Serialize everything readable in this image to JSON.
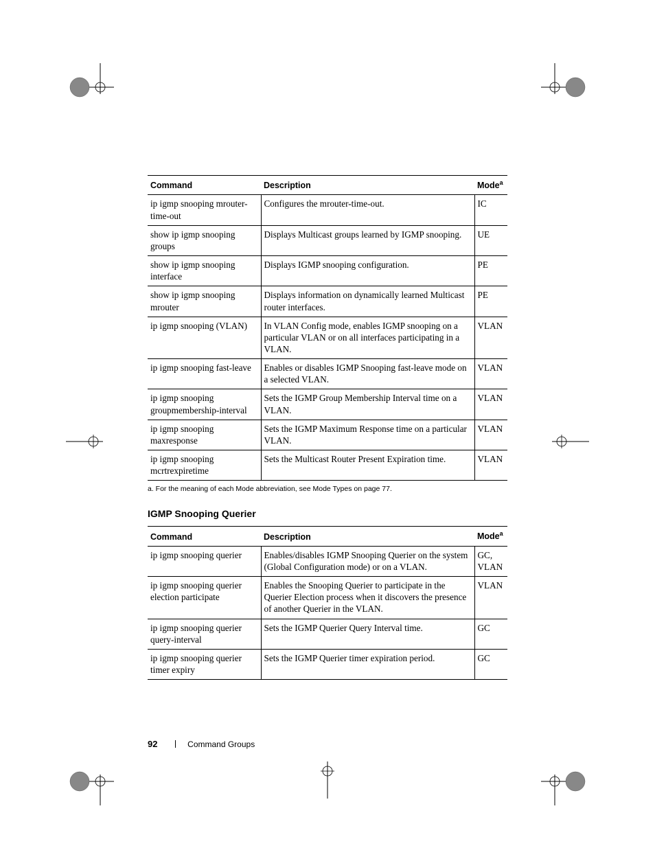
{
  "table1": {
    "headers": {
      "cmd": "Command",
      "desc": "Description",
      "mode": "Mode",
      "mode_sup": "a"
    },
    "rows": [
      {
        "cmd": "ip igmp snooping mrouter-time-out",
        "desc": "Configures the mrouter-time-out.",
        "mode": "IC"
      },
      {
        "cmd": "show ip igmp snooping groups",
        "desc": "Displays Multicast groups learned by IGMP snooping.",
        "mode": "UE"
      },
      {
        "cmd": "show ip igmp snooping interface",
        "desc": "Displays IGMP snooping configuration.",
        "mode": "PE"
      },
      {
        "cmd": "show ip igmp snooping mrouter",
        "desc": "Displays information on dynamically learned Multicast router interfaces.",
        "mode": "PE"
      },
      {
        "cmd": "ip igmp snooping (VLAN)",
        "desc": "In VLAN Config mode, enables IGMP snooping on a particular VLAN or on all interfaces participating in a VLAN.",
        "mode": "VLAN"
      },
      {
        "cmd": "ip igmp snooping fast-leave",
        "desc": "Enables or disables IGMP Snooping fast-leave mode on a selected VLAN.",
        "mode": "VLAN"
      },
      {
        "cmd": "ip igmp snooping groupmembership-interval",
        "desc": "Sets the IGMP Group Membership Interval time on a VLAN.",
        "mode": "VLAN"
      },
      {
        "cmd": "ip igmp snooping maxresponse",
        "desc": "Sets the IGMP Maximum Response time on a particular VLAN.",
        "mode": "VLAN"
      },
      {
        "cmd": "ip igmp snooping mcrtrexpiretime",
        "desc": "Sets the Multicast Router Present Expiration time.",
        "mode": "VLAN"
      }
    ]
  },
  "footnote1": "a.   For the meaning of each Mode abbreviation, see Mode Types on page 77.",
  "section2_heading": "IGMP Snooping Querier",
  "table2": {
    "headers": {
      "cmd": "Command",
      "desc": "Description",
      "mode": "Mode",
      "mode_sup": "a"
    },
    "rows": [
      {
        "cmd": "ip igmp snooping querier",
        "desc": "Enables/disables IGMP Snooping Querier on the system (Global Configuration mode) or on a VLAN.",
        "mode": "GC, VLAN"
      },
      {
        "cmd": "ip igmp snooping querier election participate",
        "desc": "Enables the Snooping Querier to participate in the Querier Election process when it discovers the presence of another Querier in the VLAN.",
        "mode": "VLAN"
      },
      {
        "cmd": "ip igmp snooping querier query-interval",
        "desc": "Sets the IGMP Querier Query Interval time.",
        "mode": "GC"
      },
      {
        "cmd": "ip igmp snooping querier timer expiry",
        "desc": "Sets the IGMP Querier timer expiration period.",
        "mode": "GC"
      }
    ]
  },
  "footer": {
    "page": "92",
    "title": "Command Groups"
  }
}
